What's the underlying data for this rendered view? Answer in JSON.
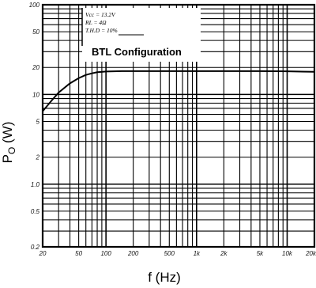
{
  "chart_data": {
    "type": "line",
    "x_scale": "log",
    "y_scale": "log",
    "xlim": [
      20,
      20000
    ],
    "ylim": [
      0.2,
      100
    ],
    "grid": true,
    "xlabel": "f (Hz)",
    "ylabel_main": "P",
    "ylabel_sub": "O",
    "ylabel_unit": " (W)",
    "x_ticks": [
      {
        "value": 20,
        "label": "20"
      },
      {
        "value": 50,
        "label": "50"
      },
      {
        "value": 100,
        "label": "100"
      },
      {
        "value": 200,
        "label": "200"
      },
      {
        "value": 500,
        "label": "500"
      },
      {
        "value": 1000,
        "label": "1k"
      },
      {
        "value": 2000,
        "label": "2k"
      },
      {
        "value": 5000,
        "label": "5k"
      },
      {
        "value": 10000,
        "label": "10k"
      },
      {
        "value": 20000,
        "label": "20k"
      }
    ],
    "y_ticks": [
      {
        "value": 0.2,
        "label": "0.2"
      },
      {
        "value": 0.5,
        "label": "0.5"
      },
      {
        "value": 1,
        "label": "1.0"
      },
      {
        "value": 2,
        "label": "2"
      },
      {
        "value": 5,
        "label": "5"
      },
      {
        "value": 10,
        "label": "10"
      },
      {
        "value": 20,
        "label": "20"
      },
      {
        "value": 50,
        "label": "50"
      },
      {
        "value": 100,
        "label": "100"
      }
    ],
    "conditions": [
      "Vcc = 13.2V",
      "RL = 4Ω",
      "T.H.D = 10%"
    ],
    "annotation": "BTL Configuration",
    "series": [
      {
        "x": [
          20,
          25,
          30,
          40,
          50,
          60,
          70,
          80,
          100,
          150,
          200,
          500,
          1000,
          2000,
          5000,
          10000,
          20000
        ],
        "y": [
          6.5,
          8.5,
          10.5,
          13.3,
          15.2,
          16.5,
          17.2,
          17.7,
          18.0,
          18.2,
          18.2,
          18.2,
          18.2,
          18.2,
          18.2,
          18.1,
          17.9
        ]
      }
    ]
  }
}
